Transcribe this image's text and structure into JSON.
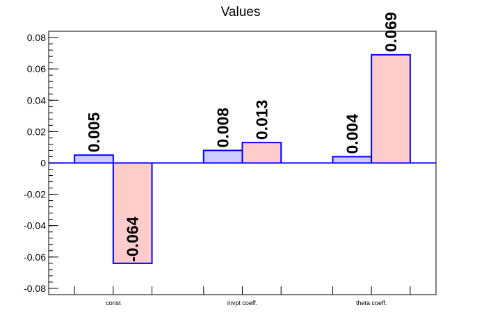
{
  "chart_data": {
    "type": "bar",
    "title": "Values",
    "categories": [
      "const",
      "invpt coeff.",
      "theta coeff."
    ],
    "series": [
      {
        "values": [
          0.005,
          0.008,
          0.004
        ],
        "labels": [
          "0.005",
          "0.008",
          "0.004"
        ],
        "fill": "#ccccff",
        "stroke": "#0000ff"
      },
      {
        "values": [
          -0.064,
          0.013,
          0.069
        ],
        "labels": [
          "-0.064",
          "0.013",
          "0.069"
        ],
        "fill": "#ffcccc",
        "stroke": "#0000ff"
      }
    ],
    "xlabel": "",
    "ylabel": "",
    "ylim": [
      -0.084,
      0.084
    ],
    "yticks": [
      -0.08,
      -0.06,
      -0.04,
      -0.02,
      0,
      0.02,
      0.04,
      0.06,
      0.08
    ],
    "ytick_labels": [
      "-0.08",
      "-0.06",
      "-0.04",
      "-0.02",
      "0",
      "0.02",
      "0.04",
      "0.06",
      "0.08"
    ],
    "grid": false,
    "legend": "none",
    "zero_line_color": "#0000ff"
  }
}
